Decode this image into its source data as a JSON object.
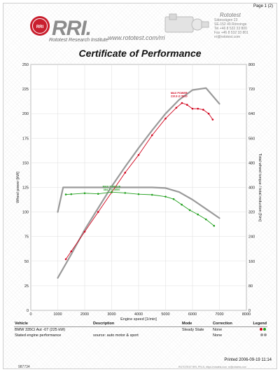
{
  "header": {
    "page_label": "Page 1 (2)",
    "brand_name": "Rototest",
    "logo_text": "RRI.",
    "logo_subtitle": "Rototest Research Institute",
    "website": "www.rototest.com/rri",
    "seal_text": "ROTOTEST RRI",
    "contact_lines": [
      "Sätesvägen 23",
      "SE-152 49 Rönninge",
      "Tel +46 8 532 33 800",
      "Fax +46 8 532 33 801",
      "rri@rototest.com"
    ]
  },
  "certificate_title": "Certificate of Performance",
  "chart_data": {
    "type": "line",
    "xlabel": "Engine speed [1/min]",
    "ylabel_left": "Wheel power [kW]",
    "ylabel_right": "Total wheel torque / total reduction [Nm]",
    "xlim": [
      0,
      8000
    ],
    "ylim_left": [
      0,
      250
    ],
    "ylim_right": [
      0,
      800
    ],
    "x_ticks": [
      0,
      1000,
      2000,
      3000,
      4000,
      5000,
      6000,
      7000,
      8000
    ],
    "y_ticks_left": [
      0,
      25,
      50,
      75,
      100,
      125,
      150,
      175,
      200,
      225,
      250
    ],
    "y_ticks_right": [
      0,
      80,
      160,
      240,
      320,
      400,
      480,
      560,
      640,
      720,
      800
    ],
    "grid": true,
    "annotations": [
      {
        "text": "MAX POWER",
        "detail": "210.8 @ 5610",
        "color": "#d0021b"
      },
      {
        "text": "MAX TORQUE",
        "detail": "384.7 @ 3000",
        "color": "#22a01e"
      }
    ],
    "series": [
      {
        "axis": "left",
        "color": "#d0021b",
        "marker": "dot",
        "x": [
          1300,
          1500,
          2000,
          2500,
          3000,
          3500,
          4000,
          4500,
          5000,
          5400,
          5610,
          5800,
          6000,
          6200,
          6400,
          6600,
          6750
        ],
        "values": [
          52,
          60,
          80,
          100,
          120,
          140,
          158,
          178,
          195,
          206,
          210.8,
          209,
          205,
          205,
          204,
          200,
          194
        ]
      },
      {
        "axis": "right",
        "color": "#22a01e",
        "marker": "dot",
        "x": [
          1300,
          1500,
          2000,
          2500,
          3000,
          3500,
          4000,
          4500,
          5000,
          5300,
          5600,
          5900,
          6200,
          6500,
          6800
        ],
        "values": [
          377,
          378,
          381,
          379,
          384.7,
          382,
          378,
          376,
          370,
          362,
          344,
          326,
          312,
          296,
          275
        ]
      },
      {
        "axis": "left",
        "color": "#9a9a9a",
        "marker": "none",
        "x": [
          1000,
          1500,
          2000,
          2500,
          3000,
          3500,
          4000,
          4500,
          5000,
          5500,
          6000,
          6500,
          7000
        ],
        "values": [
          33,
          57,
          82,
          104,
          126,
          146,
          165,
          183,
          200,
          214,
          224,
          226,
          210
        ]
      },
      {
        "axis": "right",
        "color": "#9a9a9a",
        "marker": "none",
        "x": [
          1000,
          1200,
          1500,
          2000,
          2500,
          3000,
          3500,
          4000,
          4500,
          5000,
          5500,
          6000,
          6500,
          7000
        ],
        "values": [
          320,
          400,
          400,
          400,
          400,
          400,
          400,
          400,
          400,
          398,
          385,
          360,
          330,
          300
        ]
      }
    ]
  },
  "info_table": {
    "headers": [
      "Vehicle",
      "Description",
      "Mode",
      "Correction",
      "Legend"
    ],
    "rows": [
      [
        "BMW 335Ci Aut -07 (225 kW)",
        "",
        "Steady State",
        "None"
      ],
      [
        "Stated engine performance",
        "source: auto motor & sport",
        "",
        "None"
      ]
    ],
    "legend_colors": [
      [
        "#d0021b",
        "#22a01e"
      ],
      [
        "#9a9a9a",
        "#9a9a9a"
      ]
    ]
  },
  "footer": {
    "printed": "Printed 2006-09-19 11:14",
    "doc_id": "987734",
    "fine_print": "ROTOTEST RRI, PRI-S, https://rototest.com, rri@rototest.com"
  }
}
